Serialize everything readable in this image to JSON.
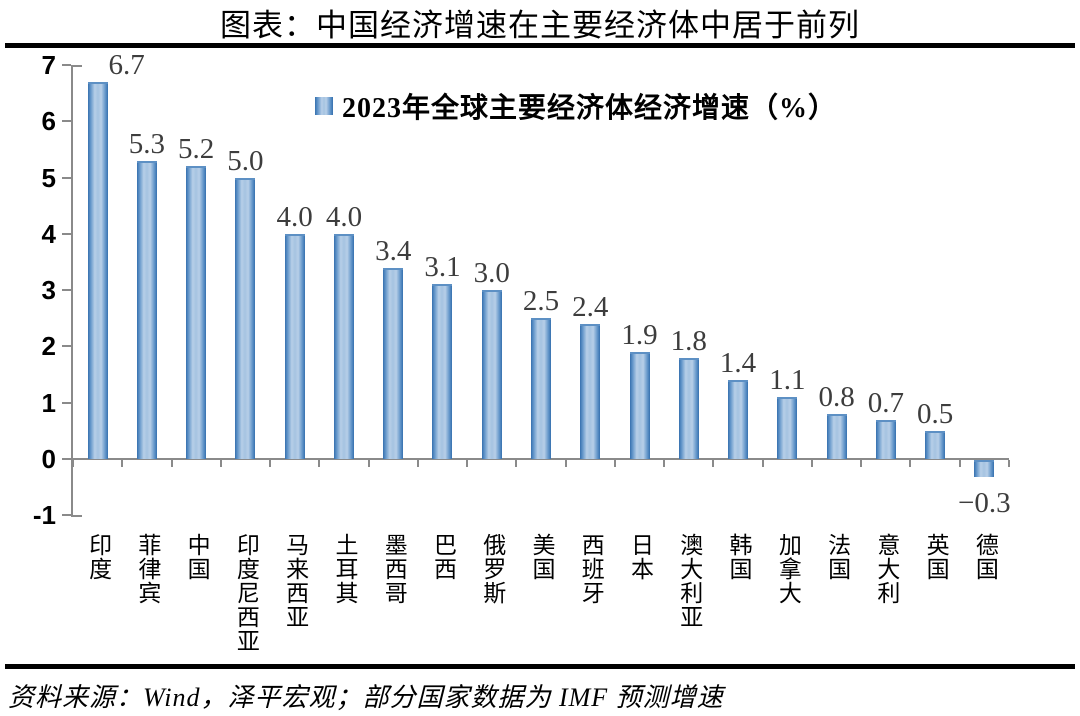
{
  "title": "图表：中国经济增速在主要经济体中居于前列",
  "source": "资料来源：Wind，泽平宏观；部分国家数据为 IMF 预测增速",
  "colors": {
    "bar_dark": "#3670ae",
    "bar_light": "#b7cfe8",
    "axis": "#8a8a8a",
    "value_label": "#3d3d3d"
  },
  "chart_data": {
    "type": "bar",
    "title": "2023年全球主要经济体经济增速（%）",
    "legend_marker": "gradient-blue-square",
    "legend_position": "top-center",
    "categories": [
      "印度",
      "菲律宾",
      "中国",
      "印度尼西亚",
      "马来西亚",
      "土耳其",
      "墨西哥",
      "巴西",
      "俄罗斯",
      "美国",
      "西班牙",
      "日本",
      "澳大利亚",
      "韩国",
      "加拿大",
      "法国",
      "意大利",
      "英国",
      "德国"
    ],
    "values": [
      6.7,
      5.3,
      5.2,
      5.0,
      4.0,
      4.0,
      3.4,
      3.1,
      3.0,
      2.5,
      2.4,
      1.9,
      1.8,
      1.4,
      1.1,
      0.8,
      0.7,
      0.5,
      -0.3
    ],
    "value_labels": [
      "6.7",
      "5.3",
      "5.2",
      "5.0",
      "4.0",
      "4.0",
      "3.4",
      "3.1",
      "3.0",
      "2.5",
      "2.4",
      "1.9",
      "1.8",
      "1.4",
      "1.1",
      "0.8",
      "0.7",
      "0.5",
      "−0.3"
    ],
    "ylim": [
      -1,
      7
    ],
    "yticks": [
      7,
      6,
      5,
      4,
      3,
      2,
      1,
      0,
      -1
    ],
    "ytick_labels": [
      "7",
      "6",
      "5",
      "4",
      "3",
      "2",
      "1",
      "0",
      "-1"
    ],
    "grid": false
  }
}
